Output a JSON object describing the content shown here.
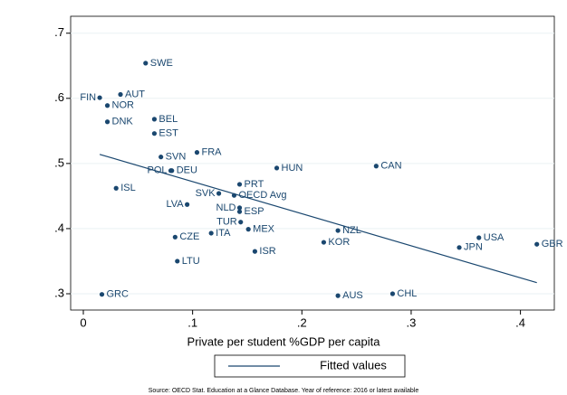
{
  "chart_data": {
    "type": "scatter",
    "xlabel": "Private per student %GDP per capita",
    "note": "Source: OECD Stat. Education at a Glance Database. Year of reference: 2016 or latest available",
    "color": "#1a476f",
    "labels": [
      "SWE",
      "FIN",
      "AUT",
      "NOR",
      "BEL",
      "DNK",
      "EST",
      "FRA",
      "SVN",
      "HUN",
      "CAN",
      "POL",
      "DEU",
      "ISL",
      "PRT",
      "SVK",
      "OECD Avg",
      "LVA",
      "NLD",
      "ESP",
      "TUR",
      "MEX",
      "ITA",
      "CZE",
      "NZL",
      "KOR",
      "USA",
      "JPN",
      "GBR",
      "ISR",
      "LTU",
      "GRC",
      "AUS",
      "CHL"
    ],
    "x": [
      0.057,
      0.015,
      0.034,
      0.022,
      0.065,
      0.022,
      0.065,
      0.104,
      0.071,
      0.177,
      0.268,
      0.08,
      0.081,
      0.03,
      0.143,
      0.124,
      0.138,
      0.095,
      0.143,
      0.143,
      0.144,
      0.151,
      0.117,
      0.084,
      0.233,
      0.22,
      0.362,
      0.344,
      0.415,
      0.157,
      0.086,
      0.017,
      0.233,
      0.283
    ],
    "values": [
      0.654,
      0.601,
      0.606,
      0.589,
      0.568,
      0.564,
      0.546,
      0.517,
      0.51,
      0.493,
      0.496,
      0.489,
      0.489,
      0.462,
      0.468,
      0.454,
      0.451,
      0.437,
      0.432,
      0.426,
      0.41,
      0.399,
      0.393,
      0.387,
      0.397,
      0.379,
      0.386,
      0.371,
      0.376,
      0.365,
      0.35,
      0.299,
      0.297,
      0.3
    ],
    "fit": {
      "name": "Fitted values",
      "x": [
        0.015,
        0.415
      ],
      "values": [
        0.514,
        0.317
      ],
      "color": "#1a476f"
    },
    "xlim": [
      -0.0116,
      0.431
    ],
    "ylim": [
      0.275,
      0.726
    ],
    "xticks": [
      0,
      {
        "value": 0.1,
        "label": ".1"
      },
      {
        "value": 0.2,
        "label": ".2"
      },
      {
        "value": 0.3,
        "label": ".3"
      },
      {
        "value": 0.4,
        "label": ".4"
      }
    ],
    "yticks": [
      {
        "value": 0.3,
        "label": ".3"
      },
      {
        "value": 0.4,
        "label": ".4"
      },
      {
        "value": 0.5,
        "label": ".5"
      },
      {
        "value": 0.6,
        "label": ".6"
      },
      {
        "value": 0.7,
        "label": ".7"
      }
    ],
    "grid": true
  }
}
